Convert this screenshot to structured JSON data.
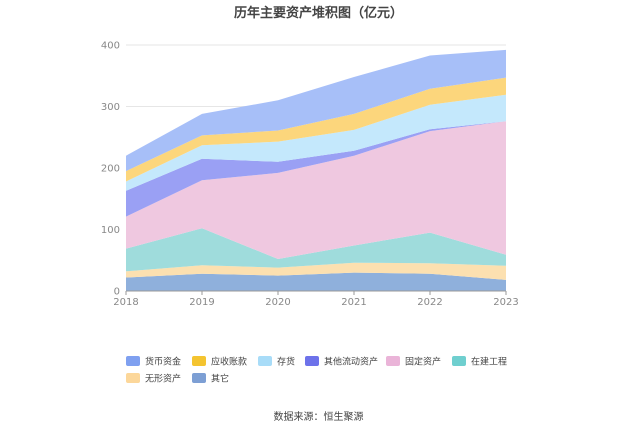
{
  "chart_data": {
    "type": "area",
    "stacked": true,
    "title": "历年主要资产堆积图（亿元）",
    "xlabel": "",
    "ylabel": "",
    "categories": [
      "2018",
      "2019",
      "2020",
      "2021",
      "2022",
      "2023"
    ],
    "ylim": [
      0,
      400
    ],
    "yticks": [
      0,
      100,
      200,
      300,
      400
    ],
    "grid": true,
    "legend_position": "bottom",
    "series": [
      {
        "name": "其它",
        "color": "#8fb0dc",
        "values": [
          22,
          28,
          25,
          30,
          28,
          18
        ]
      },
      {
        "name": "无形资产",
        "color": "#fce0b0",
        "values": [
          10,
          14,
          13,
          16,
          17,
          23
        ]
      },
      {
        "name": "在建工程",
        "color": "#9fdcdc",
        "values": [
          37,
          60,
          14,
          28,
          50,
          18
        ]
      },
      {
        "name": "固定资产",
        "color": "#efc8e0",
        "values": [
          52,
          78,
          140,
          146,
          165,
          217
        ]
      },
      {
        "name": "其他流动资产",
        "color": "#9aa0f4",
        "values": [
          42,
          35,
          18,
          8,
          3,
          0
        ]
      },
      {
        "name": "存货",
        "color": "#c4e8fc",
        "values": [
          15,
          22,
          33,
          34,
          40,
          43
        ]
      },
      {
        "name": "应收账款",
        "color": "#fcd67c",
        "values": [
          17,
          16,
          18,
          26,
          26,
          28
        ]
      },
      {
        "name": "货币资金",
        "color": "#a7bff8",
        "values": [
          25,
          35,
          49,
          60,
          54,
          45
        ]
      }
    ],
    "legend": [
      {
        "name": "货币资金",
        "color": "#7fa0f0"
      },
      {
        "name": "应收账款",
        "color": "#f4c430"
      },
      {
        "name": "存货",
        "color": "#a8dcf8"
      },
      {
        "name": "其他流动资产",
        "color": "#6d72ea"
      },
      {
        "name": "固定资产",
        "color": "#eab4d8"
      },
      {
        "name": "在建工程",
        "color": "#6fcfcf"
      },
      {
        "name": "无形资产",
        "color": "#fcd79a"
      },
      {
        "name": "其它",
        "color": "#7d9fd4"
      }
    ],
    "source": "数据来源：恒生聚源"
  }
}
